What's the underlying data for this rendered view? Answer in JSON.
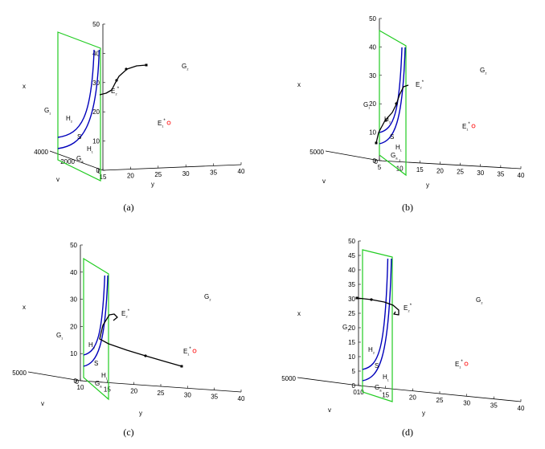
{
  "chart_data": [
    {
      "type": "line",
      "panel": "(a)",
      "axes": {
        "x": {
          "label": "x",
          "ticks": [
            "0",
            "10",
            "20",
            "30",
            "40",
            "50"
          ],
          "range": [
            0,
            50
          ]
        },
        "y": {
          "label": "y",
          "ticks": [
            "15",
            "20",
            "25",
            "30",
            "35",
            "40"
          ],
          "range": [
            15,
            40
          ]
        },
        "v": {
          "label": "v",
          "ticks": [
            "4000",
            "2000",
            "0"
          ],
          "range": [
            0,
            4000
          ]
        }
      },
      "regions": {
        "G1": "G₁",
        "G2": "G₂",
        "Ga": "Gₐ"
      },
      "surfaces": {
        "H1": "H₁",
        "H2": "H₂",
        "S": "S"
      },
      "equilibria": {
        "E1": "E₁*",
        "E2": "E₂*"
      },
      "series": [
        {
          "y": [
            29,
            27,
            24,
            21,
            18,
            16,
            15.5
          ],
          "x": [
            36,
            36,
            35,
            32,
            27,
            24,
            23
          ]
        }
      ]
    },
    {
      "type": "line",
      "panel": "(b)",
      "axes": {
        "x": {
          "label": "x",
          "ticks": [
            "0",
            "10",
            "20",
            "30",
            "40",
            "50"
          ],
          "range": [
            0,
            50
          ]
        },
        "y": {
          "label": "y",
          "ticks": [
            "5",
            "10",
            "15",
            "20",
            "25",
            "30",
            "35",
            "40"
          ],
          "range": [
            5,
            40
          ]
        },
        "v": {
          "label": "v",
          "ticks": [
            "5000",
            "0"
          ],
          "range": [
            0,
            5000
          ]
        }
      },
      "regions": {
        "G1": "G₁",
        "G2": "G₂",
        "Ga": "Gₐ"
      },
      "surfaces": {
        "H1": "H₁",
        "H2": "H₂",
        "S": "S"
      },
      "equilibria": {
        "E1": "E₁*",
        "E2": "E₂*"
      },
      "series": [
        {
          "y": [
            6,
            7,
            9,
            11,
            13,
            14,
            15
          ],
          "x": [
            4,
            10,
            16,
            19,
            20,
            22,
            24
          ]
        }
      ]
    },
    {
      "type": "line",
      "panel": "(c)",
      "axes": {
        "x": {
          "label": "x",
          "ticks": [
            "0",
            "10",
            "20",
            "30",
            "40",
            "50"
          ],
          "range": [
            0,
            50
          ]
        },
        "y": {
          "label": "y",
          "ticks": [
            "10",
            "15",
            "20",
            "25",
            "30",
            "35",
            "40"
          ],
          "range": [
            10,
            40
          ]
        },
        "v": {
          "label": "v",
          "ticks": [
            "5000",
            "0"
          ],
          "range": [
            0,
            5000
          ]
        }
      },
      "regions": {
        "G1": "G₁",
        "G2": "G₂",
        "Ga": "Gₐ"
      },
      "surfaces": {
        "H1": "H₁",
        "H2": "H₂",
        "S": "S"
      },
      "equilibria": {
        "E1": "E₁*",
        "E2": "E₂*"
      },
      "series": [
        {
          "y": [
            28,
            22,
            17,
            14,
            13,
            14,
            15
          ],
          "x": [
            3,
            6,
            9,
            14,
            19,
            22,
            24
          ]
        }
      ]
    },
    {
      "type": "line",
      "panel": "(d)",
      "axes": {
        "x": {
          "label": "x",
          "ticks": [
            "0",
            "5",
            "10",
            "15",
            "20",
            "25",
            "30",
            "35",
            "40",
            "45",
            "50"
          ],
          "range": [
            0,
            50
          ]
        },
        "y": {
          "label": "y",
          "ticks": [
            "010",
            "15",
            "20",
            "25",
            "30",
            "35",
            "40"
          ],
          "range": [
            10,
            40
          ]
        },
        "v": {
          "label": "v",
          "ticks": [
            "5000"
          ],
          "range": [
            0,
            5000
          ]
        }
      },
      "regions": {
        "G1": "G₁",
        "G2": "G₂",
        "Ga": "Gₐ"
      },
      "surfaces": {
        "H1": "H₁",
        "H2": "H₂",
        "S": "S"
      },
      "equilibria": {
        "E1": "E₁*",
        "E2": "E₂*"
      },
      "series": [
        {
          "y": [
            9,
            11,
            13,
            14,
            15,
            15.5
          ],
          "x": [
            31,
            31,
            30.5,
            29,
            27,
            26
          ]
        }
      ]
    }
  ],
  "captions": [
    "(a)",
    "(b)",
    "(c)",
    "(d)"
  ],
  "colors": {
    "plane": "#22cc22",
    "curves": "#0000bb",
    "trajectory": "#000000",
    "equilibrium": "#ff0000",
    "axes": "#000000"
  }
}
